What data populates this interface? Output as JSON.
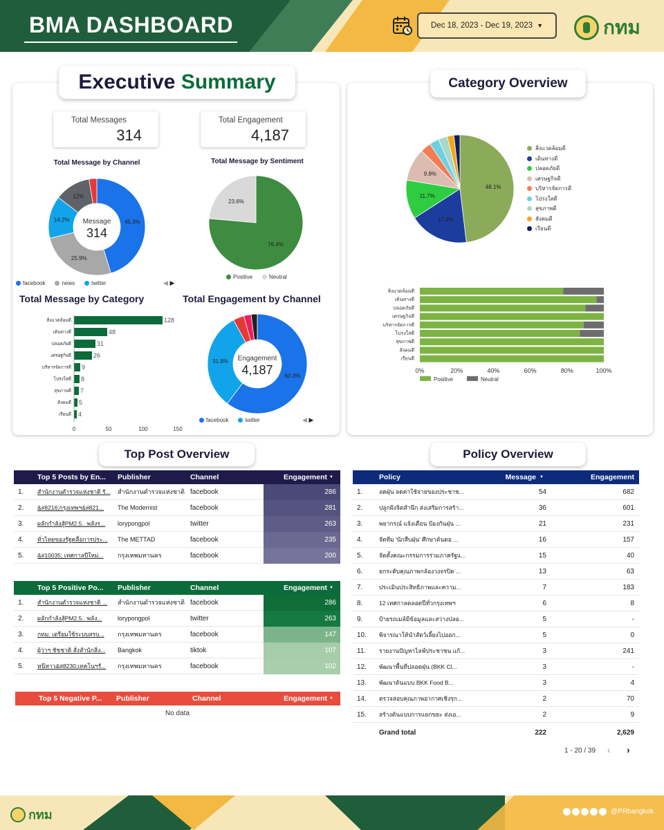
{
  "header": {
    "title": "BMA DASHBOARD",
    "date_range": "Dec 18, 2023 - Dec 19, 2023",
    "logo_text": "กทม"
  },
  "executive_summary": {
    "title_part1": "Executive",
    "title_part2": "Summary",
    "total_messages_label": "Total Messages",
    "total_messages": "314",
    "total_engagement_label": "Total Engagement",
    "total_engagement": "4,187"
  },
  "category_overview": {
    "title": "Category Overview"
  },
  "top_post_overview": {
    "title": "Top Post Overview"
  },
  "policy_overview": {
    "title": "Policy Overview"
  },
  "colors": {
    "facebook": "#1a73e8",
    "news": "#a8a8a8",
    "twitter": "#12a4ea",
    "positive": "#3d8c40",
    "neutral": "#d9d9d9",
    "bar_green": "#0b6b3a"
  },
  "chart_data": [
    {
      "id": "msg_by_channel",
      "type": "pie",
      "title": "Total Message by Channel",
      "center_label": "Message",
      "center_value": "314",
      "slices": [
        {
          "name": "facebook",
          "value": 45.3,
          "label": "45.3%",
          "color": "#1a73e8"
        },
        {
          "name": "news",
          "value": 25.9,
          "label": "25.9%",
          "color": "#a8a8a8"
        },
        {
          "name": "twitter",
          "value": 14.2,
          "label": "14.2%",
          "color": "#12a4ea"
        },
        {
          "name": "",
          "value": 12.0,
          "label": "12%",
          "color": "#5f6368"
        },
        {
          "name": "",
          "value": 2.6,
          "label": "",
          "color": "#e53935"
        }
      ],
      "legend": [
        "facebook",
        "news",
        "twitter"
      ]
    },
    {
      "id": "msg_by_sentiment",
      "type": "pie",
      "title": "Total Message by Sentiment",
      "slices": [
        {
          "name": "Positive",
          "value": 76.4,
          "label": "76.4%",
          "color": "#3d8c40"
        },
        {
          "name": "Neutral",
          "value": 23.6,
          "label": "23.6%",
          "color": "#d9d9d9"
        }
      ],
      "legend": [
        "Positive",
        "Neutral"
      ]
    },
    {
      "id": "msg_by_category",
      "type": "bar",
      "title": "Total Message by Category",
      "categories": [
        "สิ่งแวดล้อมดี",
        "เดินทางดี",
        "ปลอดภัยดี",
        "เศรษฐกิจดี",
        "บริหารจัดการดี",
        "โปร่งใสดี",
        "สุขภาพดี",
        "สังคมดี",
        "เรียนดี"
      ],
      "values": [
        128,
        48,
        31,
        26,
        9,
        8,
        7,
        5,
        4
      ],
      "xlim": [
        0,
        150
      ],
      "xticks": [
        "0",
        "50",
        "100",
        "150"
      ]
    },
    {
      "id": "eng_by_channel",
      "type": "pie",
      "title": "Total Engagement by Channel",
      "center_label": "Engagement",
      "center_value": "4,187",
      "slices": [
        {
          "name": "facebook",
          "value": 60.3,
          "label": "60.3%",
          "color": "#1a73e8"
        },
        {
          "name": "twitter",
          "value": 31.8,
          "label": "31.8%",
          "color": "#12a4ea"
        },
        {
          "name": "",
          "value": 3.5,
          "label": "",
          "color": "#e53935"
        },
        {
          "name": "",
          "value": 2.4,
          "label": "",
          "color": "#e91e63"
        },
        {
          "name": "",
          "value": 2.0,
          "label": "",
          "color": "#212121"
        }
      ],
      "legend": [
        "facebook",
        "twitter"
      ]
    },
    {
      "id": "category_pie",
      "type": "pie",
      "slices": [
        {
          "name": "สิ่งแวดล้อมดี",
          "value": 48.1,
          "label": "48.1%",
          "color": "#8bab5a"
        },
        {
          "name": "เดินทางดี",
          "value": 17.8,
          "label": "17.8%",
          "color": "#1c3d9e"
        },
        {
          "name": "ปลอดภัยดี",
          "value": 11.7,
          "label": "11.7%",
          "color": "#2ecc40"
        },
        {
          "name": "เศรษฐกิจดี",
          "value": 9.8,
          "label": "9.8%",
          "color": "#dcbcb0"
        },
        {
          "name": "บริหารจัดการดี",
          "value": 3.2,
          "label": "",
          "color": "#f47c52"
        },
        {
          "name": "โปร่งใสดี",
          "value": 2.9,
          "label": "",
          "color": "#6fd0e2"
        },
        {
          "name": "สุขภาพดี",
          "value": 2.7,
          "label": "",
          "color": "#a7d8c8"
        },
        {
          "name": "สังคมดี",
          "value": 2.0,
          "label": "",
          "color": "#f2a71b"
        },
        {
          "name": "เรียนดี",
          "value": 1.8,
          "label": "",
          "color": "#0d1f5c"
        }
      ]
    },
    {
      "id": "category_sentiment",
      "type": "bar",
      "stacked": true,
      "categories": [
        "สิ่งแวดล้อมดี",
        "เดินทางดี",
        "ปลอดภัยดี",
        "เศรษฐกิจดี",
        "บริหารจัดการดี",
        "โปร่งใสดี",
        "สุขภาพดี",
        "สังคมดี",
        "เรียนดี"
      ],
      "series": [
        {
          "name": "Positive",
          "color": "#7cb342",
          "values": [
            78,
            96,
            90,
            100,
            89,
            87,
            100,
            100,
            100
          ]
        },
        {
          "name": "Neutral",
          "color": "#6d6d6d",
          "values": [
            22,
            4,
            10,
            0,
            11,
            13,
            0,
            0,
            0
          ]
        }
      ],
      "xticks": [
        "0%",
        "20%",
        "40%",
        "60%",
        "80%",
        "100%"
      ]
    }
  ],
  "top5_posts": {
    "headers": [
      "Top 5 Posts by En...",
      "Publisher",
      "Channel",
      "Engagement"
    ],
    "rows": [
      {
        "n": "1.",
        "post": "สำนักงานตำรวจแห่งชาติ รั...",
        "publisher": "สำนักงานตำรวจแห่งชาติ",
        "channel": "facebook",
        "eng": 286
      },
      {
        "n": "2.",
        "post": "&#8216;กรุงเทพฯ&#821...",
        "publisher": "The Modernist",
        "channel": "facebook",
        "eng": 281
      },
      {
        "n": "3.",
        "post": "ผลักกำลังสู้PM2.5.. พลังร...",
        "publisher": "lorypongpol",
        "channel": "twitter",
        "eng": 263
      },
      {
        "n": "4.",
        "post": "ทั่วไทยของรัฐคลื่อการประ...",
        "publisher": "The METTAD",
        "channel": "facebook",
        "eng": 235
      },
      {
        "n": "5.",
        "post": "&#10035; เทศกาลปีใหม่...",
        "publisher": "กรุงเทพมหานคร",
        "channel": "facebook",
        "eng": 200
      }
    ]
  },
  "top5_positive": {
    "headers": [
      "Top 5 Positive Po...",
      "Publisher",
      "Channel",
      "Engagement"
    ],
    "rows": [
      {
        "n": "1.",
        "post": "สำนักงานตำรวจแห่งชาติ ...",
        "publisher": "สำนักงานตำรวจแห่งชาติ",
        "channel": "facebook",
        "eng": 286
      },
      {
        "n": "2.",
        "post": "ผลักกำลังสู้PM2.5.. พลัง...",
        "publisher": "lorypongpol",
        "channel": "twitter",
        "eng": 263
      },
      {
        "n": "3.",
        "post": "กทม. เตรียมใช้ระบบสรบ...",
        "publisher": "กรุงเทพมหานคร",
        "channel": "facebook",
        "eng": 147
      },
      {
        "n": "4.",
        "post": "ผู้ว่าฯ ชัชชาติ สั่งสำนักสิ่ง...",
        "publisher": "Bangkok",
        "channel": "tiktok",
        "eng": 107
      },
      {
        "n": "5.",
        "post": "หนีหาว&#8230;เทคโนฯรั...",
        "publisher": "กรุงเทพมหานคร",
        "channel": "facebook",
        "eng": 102
      }
    ]
  },
  "top5_negative": {
    "headers": [
      "Top 5 Negative P...",
      "Publisher",
      "Channel",
      "Engagement"
    ],
    "no_data": "No data"
  },
  "policy_table": {
    "headers": [
      "Policy",
      "Message",
      "Engagement"
    ],
    "rows": [
      {
        "n": "1.",
        "policy": "ลดฝุ่น ลดค่าใช้จ่ายของประชาช...",
        "msg": "54",
        "eng": "682"
      },
      {
        "n": "2.",
        "policy": "ปลูกฝังจิตสำนึก ส่งเสริมการสร้า...",
        "msg": "36",
        "eng": "601"
      },
      {
        "n": "3.",
        "policy": "พยากรณ์ แจ้งเตือน ป้องกันฝุ่น ...",
        "msg": "21",
        "eng": "231"
      },
      {
        "n": "4.",
        "policy": "จัดทีม 'นักสืบฝุ่น' ศึกษาต้นตอ ...",
        "msg": "16",
        "eng": "157"
      },
      {
        "n": "5.",
        "policy": "จัดตั้งคณะกรรมการร่วมภาครัฐแ...",
        "msg": "15",
        "eng": "40"
      },
      {
        "n": "6.",
        "policy": "ยกระดับคุณภาพกล้องวงจรปิด ...",
        "msg": "13",
        "eng": "63"
      },
      {
        "n": "7.",
        "policy": "ประเมินประสิทธิภาพและความ...",
        "msg": "7",
        "eng": "183"
      },
      {
        "n": "8.",
        "policy": "12 เทศกาลตลอดปีทั่วกรุงเทพฯ",
        "msg": "6",
        "eng": "8"
      },
      {
        "n": "9.",
        "policy": "ป้ายรถเมล์มีข้อมูลและสว่างปลอ...",
        "msg": "5",
        "eng": "-"
      },
      {
        "n": "10.",
        "policy": "พิจารณาให้นำสัตว์เลี้ยงไปออก...",
        "msg": "5",
        "eng": "0"
      },
      {
        "n": "11.",
        "policy": "รายงานปัญหาไลฟ์ประชาชน แก้...",
        "msg": "3",
        "eng": "241"
      },
      {
        "n": "12.",
        "policy": "พัฒนาพื้นที่ปลอดฝุ่น (BKK Cl...",
        "msg": "3",
        "eng": "-"
      },
      {
        "n": "13.",
        "policy": "พัฒนาต้นแบบ BKK Food B...",
        "msg": "3",
        "eng": "4"
      },
      {
        "n": "14.",
        "policy": "ตรวจสอบคุณภาพอากาศเชิงรุก...",
        "msg": "2",
        "eng": "70"
      },
      {
        "n": "15.",
        "policy": "สร้างต้นแบบการแยกขยะ ส่งเอ...",
        "msg": "2",
        "eng": "9"
      }
    ],
    "grand_total_label": "Grand total",
    "grand_total_msg": "222",
    "grand_total_eng": "2,629",
    "pagination": "1 - 20 / 39"
  },
  "footer": {
    "logo_text": "กทม",
    "handle": "@PRbangkok"
  }
}
